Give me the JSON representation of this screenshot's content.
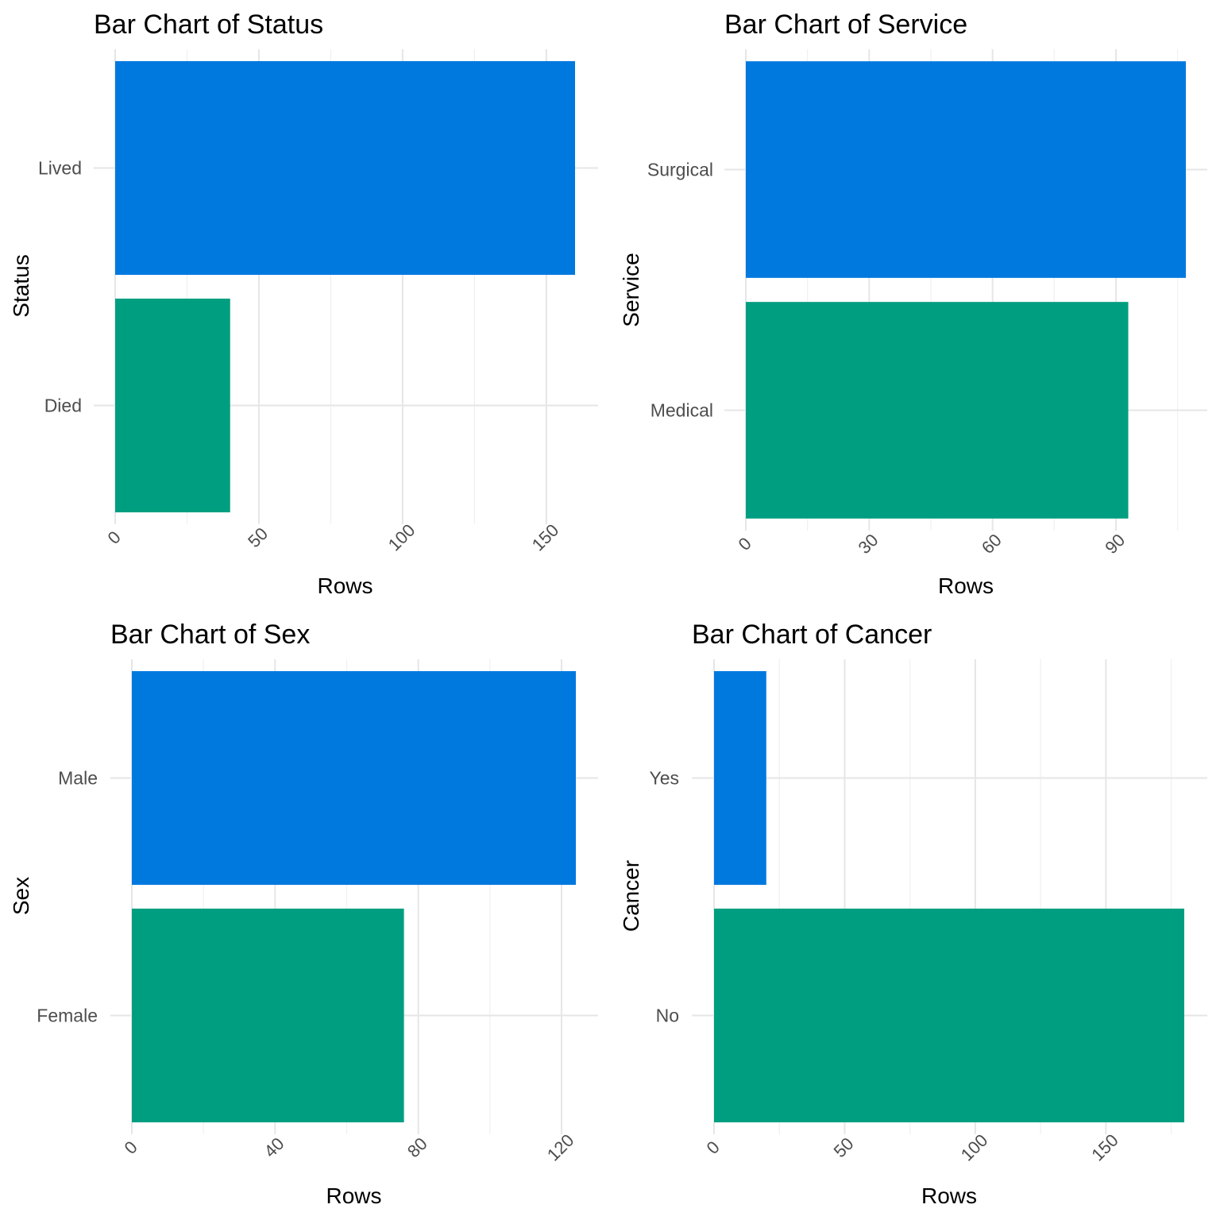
{
  "chart_data": [
    {
      "type": "bar",
      "orientation": "horizontal",
      "title": "Bar Chart of Status",
      "xlabel": "Rows",
      "ylabel": "Status",
      "categories": [
        "Died",
        "Lived"
      ],
      "values": [
        40,
        160
      ],
      "colors": [
        "#009E80",
        "#0079DF"
      ],
      "xlim": [
        0,
        160
      ],
      "xticks": [
        0,
        50,
        100,
        150
      ],
      "xtick_labels": [
        "0",
        "50",
        "100",
        "150"
      ],
      "xminor": [
        25,
        75,
        125
      ],
      "grid": true
    },
    {
      "type": "bar",
      "orientation": "horizontal",
      "title": "Bar Chart of Service",
      "xlabel": "Rows",
      "ylabel": "Service",
      "categories": [
        "Medical",
        "Surgical"
      ],
      "values": [
        93,
        107
      ],
      "colors": [
        "#009E80",
        "#0079DF"
      ],
      "xlim": [
        0,
        107
      ],
      "xticks": [
        0,
        30,
        60,
        90
      ],
      "xtick_labels": [
        "0",
        "30",
        "60",
        "90"
      ],
      "xminor": [
        15,
        45,
        75,
        105
      ],
      "grid": true
    },
    {
      "type": "bar",
      "orientation": "horizontal",
      "title": "Bar Chart of Sex",
      "xlabel": "Rows",
      "ylabel": "Sex",
      "categories": [
        "Female",
        "Male"
      ],
      "values": [
        76,
        124
      ],
      "colors": [
        "#009E80",
        "#0079DF"
      ],
      "xlim": [
        0,
        124
      ],
      "xticks": [
        0,
        40,
        80,
        120
      ],
      "xtick_labels": [
        "0",
        "40",
        "80",
        "120"
      ],
      "xminor": [
        20,
        60,
        100
      ],
      "grid": true
    },
    {
      "type": "bar",
      "orientation": "horizontal",
      "title": "Bar Chart of Cancer",
      "xlabel": "Rows",
      "ylabel": "Cancer",
      "categories": [
        "No",
        "Yes"
      ],
      "values": [
        180,
        20
      ],
      "colors": [
        "#009E80",
        "#0079DF"
      ],
      "xlim": [
        0,
        180
      ],
      "xticks": [
        0,
        50,
        100,
        150
      ],
      "xtick_labels": [
        "0",
        "50",
        "100",
        "150"
      ],
      "xminor": [
        25,
        75,
        125,
        175
      ],
      "grid": true
    }
  ]
}
